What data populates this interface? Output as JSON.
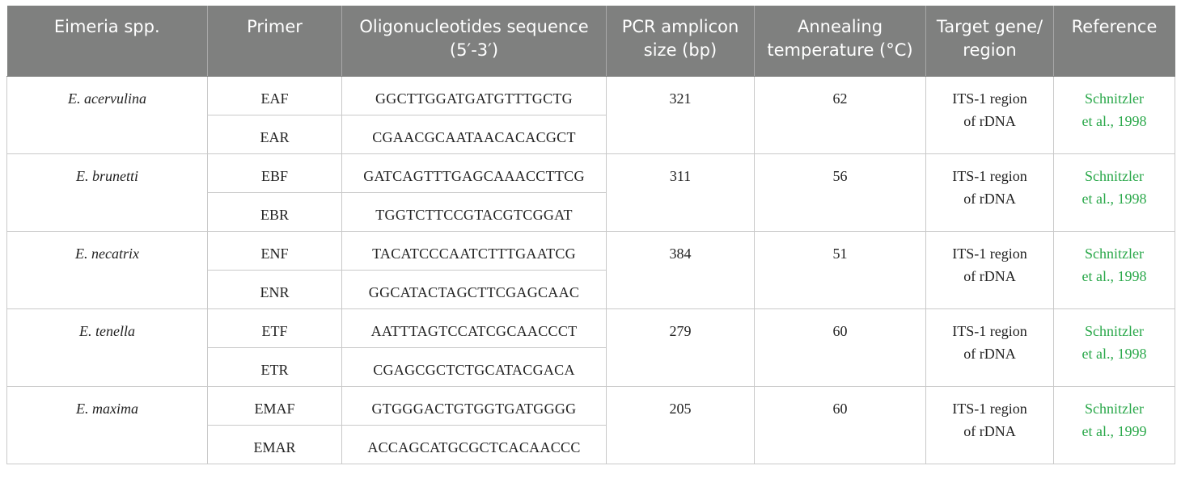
{
  "table": {
    "headers": [
      "Eimeria spp.",
      "Primer",
      "Oligonucleotides sequence (5′-3′)",
      "PCR amplicon size (bp)",
      "Annealing temperature (°C)",
      "Target gene/ region",
      "Reference"
    ],
    "rows": [
      {
        "species": "E. acervulina",
        "primer_f": "EAF",
        "seq_f": "GGCTTGGATGATGTTTGCTG",
        "primer_r": "EAR",
        "seq_r": "CGAACGCAATAACACACGCT",
        "size": "321",
        "temp": "62",
        "target_1": "ITS-1 region",
        "target_2": "of rDNA",
        "ref_1": "Schnitzler",
        "ref_2": "et al., 1998"
      },
      {
        "species": "E. brunetti",
        "primer_f": "EBF",
        "seq_f": "GATCAGTTTGAGCAAACCTTCG",
        "primer_r": "EBR",
        "seq_r": "TGGTCTTCCGTACGTCGGAT",
        "size": "311",
        "temp": "56",
        "target_1": "ITS-1 region",
        "target_2": "of rDNA",
        "ref_1": "Schnitzler",
        "ref_2": "et al., 1998"
      },
      {
        "species": "E. necatrix",
        "primer_f": "ENF",
        "seq_f": "TACATCCCAATCTTTGAATCG",
        "primer_r": "ENR",
        "seq_r": "GGCATACTAGCTTCGAGCAAC",
        "size": "384",
        "temp": "51",
        "target_1": "ITS-1 region",
        "target_2": "of rDNA",
        "ref_1": "Schnitzler",
        "ref_2": "et al., 1998"
      },
      {
        "species": "E. tenella",
        "primer_f": "ETF",
        "seq_f": "AATTTAGTCCATCGCAACCCT",
        "primer_r": "ETR",
        "seq_r": "CGAGCGCTCTGCATACGACA",
        "size": "279",
        "temp": "60",
        "target_1": "ITS-1 region",
        "target_2": "of rDNA",
        "ref_1": "Schnitzler",
        "ref_2": "et al., 1998"
      },
      {
        "species": "E. maxima",
        "primer_f": "EMAF",
        "seq_f": "GTGGGACTGTGGTGATGGGG",
        "primer_r": "EMAR",
        "seq_r": "ACCAGCATGCGCTCACAACCC",
        "size": "205",
        "temp": "60",
        "target_1": "ITS-1 region",
        "target_2": "of rDNA",
        "ref_1": "Schnitzler",
        "ref_2": "et al., 1999"
      }
    ]
  }
}
